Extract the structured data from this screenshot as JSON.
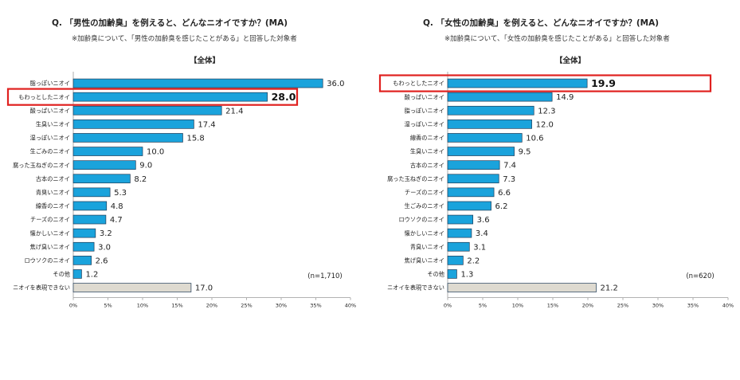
{
  "chart_data": [
    {
      "type": "bar",
      "orientation": "horizontal",
      "title": "Q. 「男性の加齢臭」を例えると、どんなニオイですか？(MA)",
      "subtitle": "※加齢臭について、「男性の加齢臭を感じたことがある」と回答した対象者",
      "group_label": "【全体】",
      "n_label": "(n=1,710)",
      "categories": [
        "脂っぽいニオイ",
        "もわっとしたニオイ",
        "酸っぱいニオイ",
        "生臭いニオイ",
        "湿っぽいニオイ",
        "生ごみのニオイ",
        "腐った玉ねぎのニオイ",
        "古本のニオイ",
        "青臭いニオイ",
        "線香のニオイ",
        "チーズのニオイ",
        "懐かしいニオイ",
        "焦げ臭いニオイ",
        "ロウソクのニオイ",
        "その他",
        "ニオイを表現できない"
      ],
      "values": [
        36.0,
        28.0,
        21.4,
        17.4,
        15.8,
        10.0,
        9.0,
        8.2,
        5.3,
        4.8,
        4.7,
        3.2,
        3.0,
        2.6,
        1.2,
        17.0
      ],
      "value_labels": [
        "36.0",
        "28.0",
        "21.4",
        "17.4",
        "15.8",
        "10.0",
        "9.0",
        "8.2",
        "5.3",
        "4.8",
        "4.7",
        "3.2",
        "3.0",
        "2.6",
        "1.2",
        "17.0"
      ],
      "highlighted_index": 1,
      "last_bar_style": "neutral",
      "x_ticks": [
        "0%",
        "5%",
        "10%",
        "15%",
        "20%",
        "25%",
        "30%",
        "35%",
        "40%"
      ],
      "xlim": [
        0,
        40
      ],
      "grid": false
    },
    {
      "type": "bar",
      "orientation": "horizontal",
      "title": "Q. 「女性の加齢臭」を例えると、どんなニオイですか？(MA)",
      "subtitle": "※加齢臭について、「女性の加齢臭を感じたことがある」と回答した対象者",
      "group_label": "【全体】",
      "n_label": "(n=620)",
      "categories": [
        "もわっとしたニオイ",
        "酸っぱいニオイ",
        "脂っぽいニオイ",
        "湿っぽいニオイ",
        "線香のニオイ",
        "生臭いニオイ",
        "古本のニオイ",
        "腐った玉ねぎのニオイ",
        "チーズのニオイ",
        "生ごみのニオイ",
        "ロウソクのニオイ",
        "懐かしいニオイ",
        "青臭いニオイ",
        "焦げ臭いニオイ",
        "その他",
        "ニオイを表現できない"
      ],
      "values": [
        19.9,
        14.9,
        12.3,
        12.0,
        10.6,
        9.5,
        7.4,
        7.3,
        6.6,
        6.2,
        3.6,
        3.4,
        3.1,
        2.2,
        1.3,
        21.2
      ],
      "value_labels": [
        "19.9",
        "14.9",
        "12.3",
        "12.0",
        "10.6",
        "9.5",
        "7.4",
        "7.3",
        "6.6",
        "6.2",
        "3.6",
        "3.4",
        "3.1",
        "2.2",
        "1.3",
        "21.2"
      ],
      "highlighted_index": 0,
      "last_bar_style": "neutral",
      "x_ticks": [
        "0%",
        "5%",
        "10%",
        "15%",
        "20%",
        "25%",
        "30%",
        "35%",
        "40%"
      ],
      "xlim": [
        0,
        40
      ],
      "grid": false
    }
  ],
  "colors": {
    "bar": "#1aa3dc",
    "bar_outline": "#1f3b57",
    "neutral_bar": "#dedad0",
    "highlight_box": "#e0211f"
  }
}
